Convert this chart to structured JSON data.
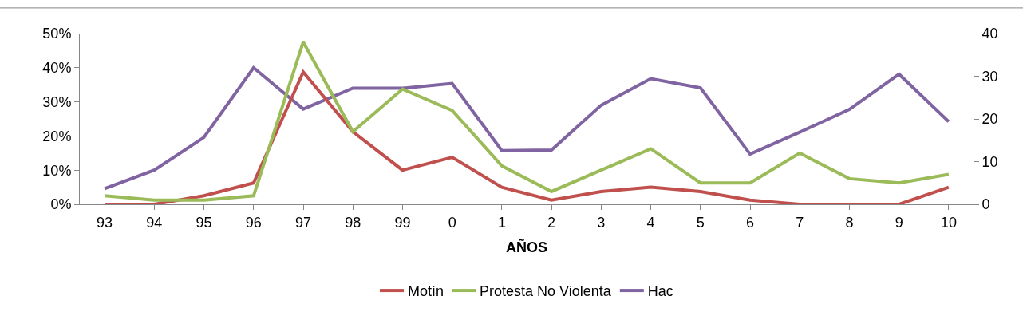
{
  "chart_data": {
    "type": "line",
    "xlabel": "AÑOS",
    "categories": [
      "93",
      "94",
      "95",
      "96",
      "97",
      "98",
      "99",
      "0",
      "1",
      "2",
      "3",
      "4",
      "5",
      "6",
      "7",
      "8",
      "9",
      "10"
    ],
    "series": [
      {
        "name": "Motín",
        "color": "#c0504d",
        "axis": "y2",
        "values": [
          0,
          0,
          2,
          5,
          31,
          17,
          8,
          11,
          4,
          1,
          3,
          4,
          3,
          1,
          0,
          0,
          0,
          4
        ]
      },
      {
        "name": "Protesta No Violenta",
        "color": "#9bbb59",
        "axis": "y2",
        "values": [
          2,
          1,
          1,
          2,
          38,
          17,
          27,
          22,
          9,
          3,
          8,
          13,
          5,
          5,
          12,
          6,
          5,
          7
        ]
      },
      {
        "name": "Hac",
        "color": "#8064a2",
        "values": [
          4.6,
          10,
          19.6,
          40,
          27.9,
          34,
          34,
          35.4,
          15.7,
          15.9,
          29,
          36.8,
          34.1,
          14.7,
          21.1,
          27.8,
          38.1,
          24.2
        ]
      }
    ],
    "ylim": [
      0,
      50
    ],
    "yticks": [
      {
        "value": 0,
        "label": "0%"
      },
      {
        "value": 10,
        "label": "10%"
      },
      {
        "value": 20,
        "label": "20%"
      },
      {
        "value": 30,
        "label": "30%"
      },
      {
        "value": 40,
        "label": "40%"
      },
      {
        "value": 50,
        "label": "50%"
      }
    ],
    "y2lim": [
      0,
      40
    ],
    "y2ticks": [
      0,
      10,
      20,
      30,
      40
    ],
    "legend": "bottom",
    "marker": "none",
    "line_style": "solid"
  }
}
